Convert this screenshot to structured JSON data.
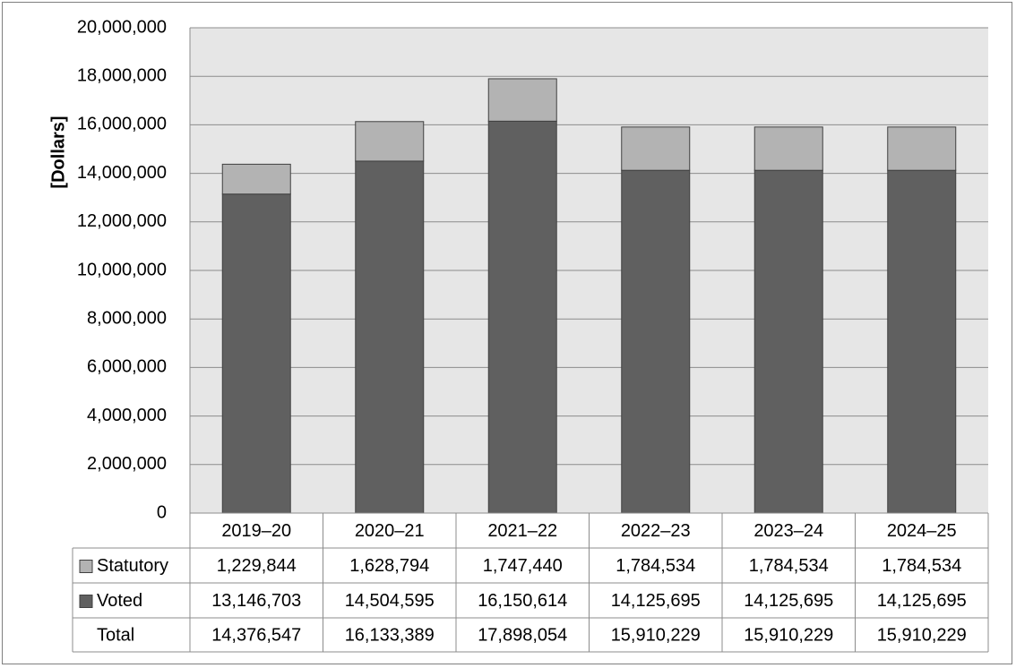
{
  "chart_data": {
    "type": "bar",
    "stacked": true,
    "categories": [
      "2019–20",
      "2020–21",
      "2021–22",
      "2022–23",
      "2023–24",
      "2024–25"
    ],
    "series": [
      {
        "name": "Voted",
        "values": [
          13146703,
          14504595,
          16150614,
          14125695,
          14125695,
          14125695
        ],
        "color": "#606060"
      },
      {
        "name": "Statutory",
        "values": [
          1229844,
          1628794,
          1747440,
          1784534,
          1784534,
          1784534
        ],
        "color": "#b3b3b3"
      }
    ],
    "ylabel": "[Dollars]",
    "ylim": [
      0,
      20000000
    ],
    "yticks": [
      "0",
      "2,000,000",
      "4,000,000",
      "6,000,000",
      "8,000,000",
      "10,000,000",
      "12,000,000",
      "14,000,000",
      "16,000,000",
      "18,000,000",
      "20,000,000"
    ],
    "grid": true,
    "plot_background": "#e6e6e6",
    "table": {
      "rows": [
        {
          "label": "Statutory",
          "swatch": "#b3b3b3",
          "values": [
            "1,229,844",
            "1,628,794",
            "1,747,440",
            "1,784,534",
            "1,784,534",
            "1,784,534"
          ]
        },
        {
          "label": "Voted",
          "swatch": "#606060",
          "values": [
            "13,146,703",
            "14,504,595",
            "16,150,614",
            "14,125,695",
            "14,125,695",
            "14,125,695"
          ]
        },
        {
          "label": "Total",
          "swatch": "",
          "values": [
            "14,376,547",
            "16,133,389",
            "17,898,054",
            "15,910,229",
            "15,910,229",
            "15,910,229"
          ]
        }
      ]
    }
  }
}
